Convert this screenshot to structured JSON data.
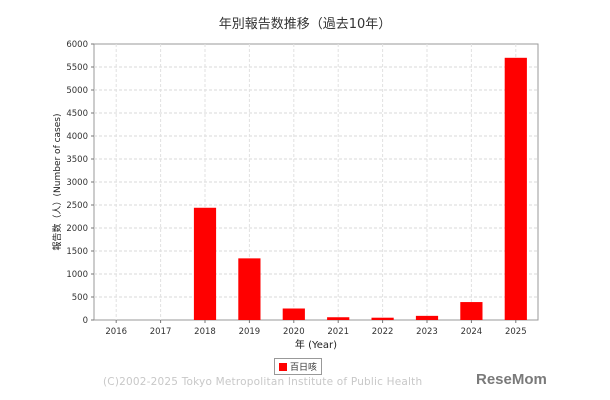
{
  "chart_data": {
    "type": "bar",
    "title": "年別報告数推移（過去10年）",
    "xlabel": "年 (Year)",
    "ylabel": "報告数（人）(Number of cases)",
    "categories": [
      "2016",
      "2017",
      "2018",
      "2019",
      "2020",
      "2021",
      "2022",
      "2023",
      "2024",
      "2025"
    ],
    "series": [
      {
        "name": "百日咳",
        "values": [
          0,
          0,
          2440,
          1340,
          250,
          60,
          50,
          90,
          390,
          5700
        ]
      }
    ],
    "ylim": [
      0,
      6000
    ],
    "yticks": [
      0,
      500,
      1000,
      1500,
      2000,
      2500,
      3000,
      3500,
      4000,
      4500,
      5000,
      5500,
      6000
    ],
    "grid": true,
    "legend_position": "bottom",
    "bar_color": "#ff0000"
  },
  "footer": {
    "copyright": "(C)2002-2025 Tokyo Metropolitan Institute of Public Health",
    "logo": "ReseMom"
  }
}
